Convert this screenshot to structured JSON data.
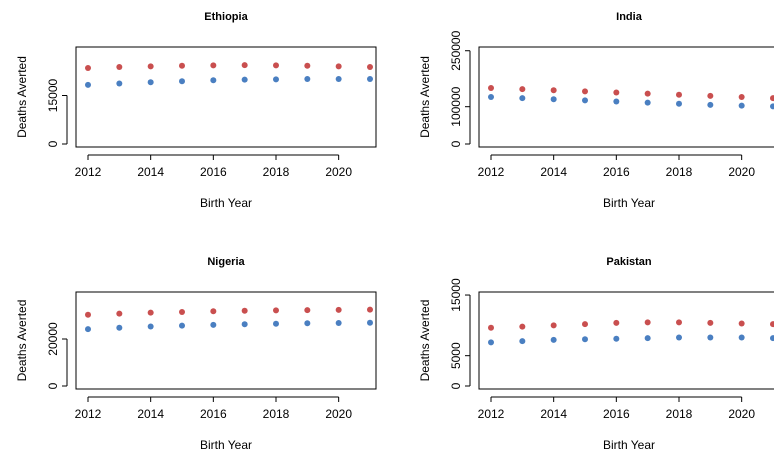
{
  "chart_data": [
    {
      "type": "scatter",
      "title": "Ethiopia",
      "xlabel": "Birth Year",
      "ylabel": "Deaths Averted",
      "xlim": [
        2012,
        2021
      ],
      "ylim": [
        0,
        30000
      ],
      "xticks": [
        2012,
        2014,
        2016,
        2018,
        2020
      ],
      "yticks": [
        0,
        15000
      ],
      "x": [
        2012,
        2013,
        2014,
        2015,
        2016,
        2017,
        2018,
        2019,
        2020,
        2021
      ],
      "series": [
        {
          "color": "#c94f4f",
          "values": [
            23500,
            23800,
            24000,
            24200,
            24300,
            24400,
            24300,
            24200,
            24000,
            23800
          ]
        },
        {
          "color": "#4a7fc1",
          "values": [
            18300,
            18700,
            19100,
            19400,
            19700,
            19900,
            20000,
            20100,
            20100,
            20100
          ]
        }
      ]
    },
    {
      "type": "scatter",
      "title": "India",
      "xlabel": "Birth Year",
      "ylabel": "Deaths Averted",
      "xlim": [
        2012,
        2021
      ],
      "ylim": [
        0,
        260000
      ],
      "xticks": [
        2012,
        2014,
        2016,
        2018,
        2020
      ],
      "yticks": [
        0,
        100000,
        250000
      ],
      "x": [
        2012,
        2013,
        2014,
        2015,
        2016,
        2017,
        2018,
        2019,
        2020,
        2021
      ],
      "series": [
        {
          "color": "#c94f4f",
          "values": [
            150000,
            147000,
            144000,
            141000,
            138000,
            135000,
            132000,
            129000,
            126000,
            123000
          ]
        },
        {
          "color": "#4a7fc1",
          "values": [
            126000,
            123000,
            120000,
            117000,
            114000,
            111000,
            108000,
            105000,
            103000,
            101000
          ]
        }
      ]
    },
    {
      "type": "scatter",
      "title": "Nigeria",
      "xlabel": "Birth Year",
      "ylabel": "Deaths Averted",
      "xlim": [
        2012,
        2021
      ],
      "ylim": [
        0,
        40000
      ],
      "xticks": [
        2012,
        2014,
        2016,
        2018,
        2020
      ],
      "yticks": [
        0,
        20000
      ],
      "x": [
        2012,
        2013,
        2014,
        2015,
        2016,
        2017,
        2018,
        2019,
        2020,
        2021
      ],
      "series": [
        {
          "color": "#c94f4f",
          "values": [
            30300,
            30800,
            31200,
            31500,
            31800,
            32000,
            32200,
            32300,
            32400,
            32500
          ]
        },
        {
          "color": "#4a7fc1",
          "values": [
            24200,
            24800,
            25300,
            25700,
            26000,
            26300,
            26500,
            26700,
            26800,
            26900
          ]
        }
      ]
    },
    {
      "type": "scatter",
      "title": "Pakistan",
      "xlabel": "Birth Year",
      "ylabel": "Deaths Averted",
      "xlim": [
        2012,
        2021
      ],
      "ylim": [
        0,
        15500
      ],
      "xticks": [
        2012,
        2014,
        2016,
        2018,
        2020
      ],
      "yticks": [
        0,
        5000,
        15000
      ],
      "x": [
        2012,
        2013,
        2014,
        2015,
        2016,
        2017,
        2018,
        2019,
        2020,
        2021
      ],
      "series": [
        {
          "color": "#c94f4f",
          "values": [
            9600,
            9800,
            10000,
            10200,
            10400,
            10500,
            10500,
            10400,
            10300,
            10200
          ]
        },
        {
          "color": "#4a7fc1",
          "values": [
            7200,
            7400,
            7600,
            7700,
            7800,
            7900,
            8000,
            8000,
            8000,
            7900
          ]
        }
      ]
    }
  ]
}
